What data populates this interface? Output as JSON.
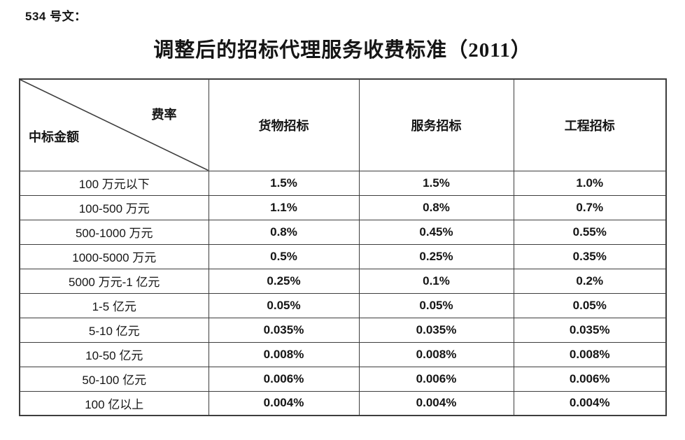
{
  "doc_label": "534 号文：",
  "title": "调整后的招标代理服务收费标准（2011）",
  "colors": {
    "background": "#ffffff",
    "text": "#151515",
    "table_border": "#3d3d3d"
  },
  "table": {
    "corner": {
      "top_right": "费率",
      "bottom_left": "中标金额"
    },
    "columns": [
      "货物招标",
      "服务招标",
      "工程招标"
    ],
    "rows": [
      {
        "label": "100 万元以下",
        "values": [
          "1.5%",
          "1.5%",
          "1.0%"
        ]
      },
      {
        "label": "100-500 万元",
        "values": [
          "1.1%",
          "0.8%",
          "0.7%"
        ]
      },
      {
        "label": "500-1000 万元",
        "values": [
          "0.8%",
          "0.45%",
          "0.55%"
        ]
      },
      {
        "label": "1000-5000 万元",
        "values": [
          "0.5%",
          "0.25%",
          "0.35%"
        ]
      },
      {
        "label": "5000 万元-1 亿元",
        "values": [
          "0.25%",
          "0.1%",
          "0.2%"
        ]
      },
      {
        "label": "1-5 亿元",
        "values": [
          "0.05%",
          "0.05%",
          "0.05%"
        ]
      },
      {
        "label": "5-10 亿元",
        "values": [
          "0.035%",
          "0.035%",
          "0.035%"
        ]
      },
      {
        "label": "10-50 亿元",
        "values": [
          "0.008%",
          "0.008%",
          "0.008%"
        ]
      },
      {
        "label": "50-100 亿元",
        "values": [
          "0.006%",
          "0.006%",
          "0.006%"
        ]
      },
      {
        "label": "100 亿以上",
        "values": [
          "0.004%",
          "0.004%",
          "0.004%"
        ]
      }
    ]
  }
}
